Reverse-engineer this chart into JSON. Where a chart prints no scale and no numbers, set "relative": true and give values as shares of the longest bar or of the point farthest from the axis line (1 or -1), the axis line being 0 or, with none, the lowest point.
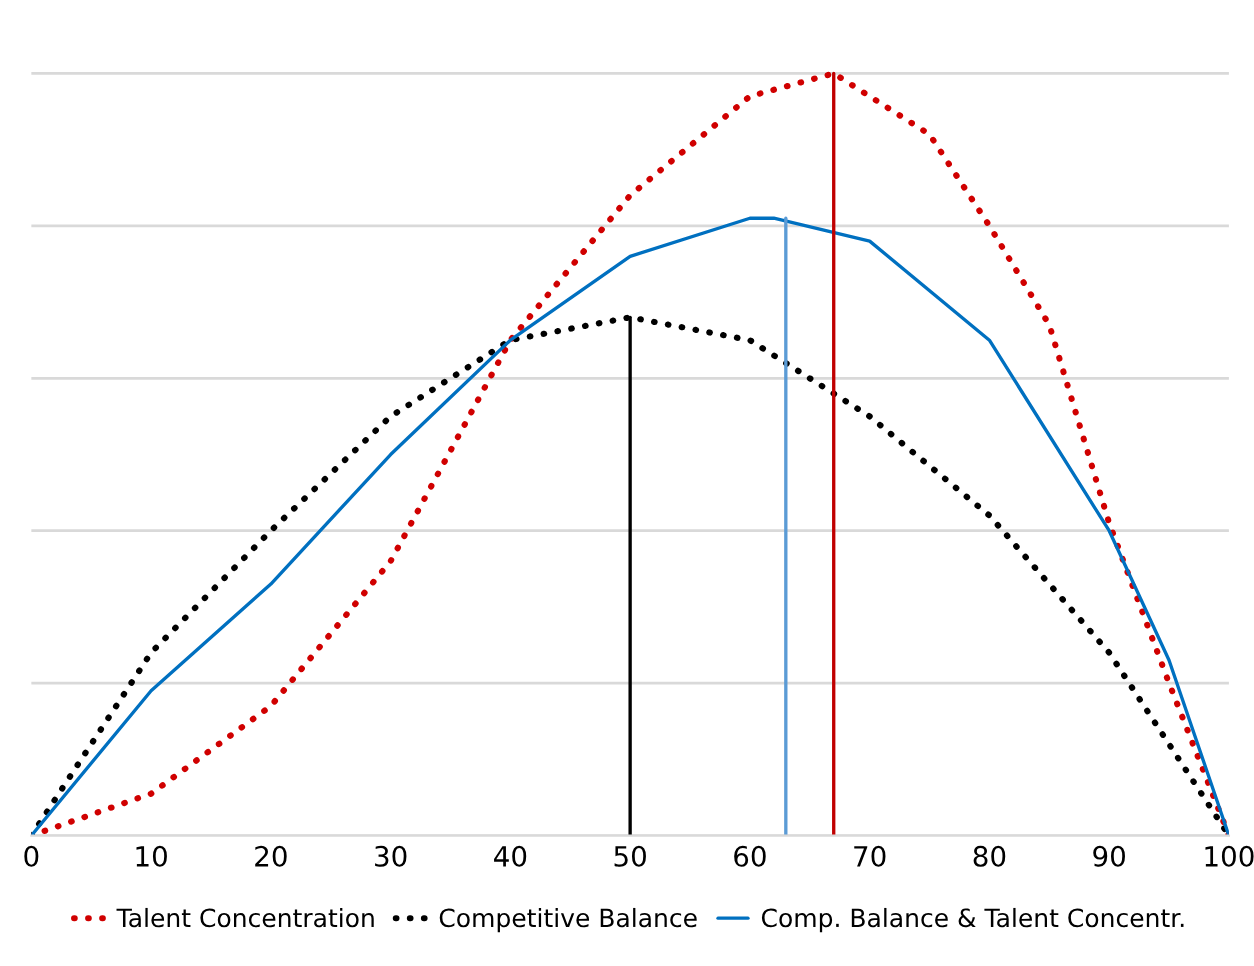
{
  "chart_data": {
    "type": "line",
    "relative": true,
    "xlim": [
      0,
      100
    ],
    "xticks": [
      0,
      10,
      20,
      30,
      40,
      50,
      60,
      70,
      80,
      90,
      100
    ],
    "grid": "y",
    "legend": "bottom",
    "series": [
      {
        "name": "Talent Concentration",
        "color": "#d00000",
        "line_style": "dotted",
        "x": [
          0,
          10,
          20,
          30,
          40,
          50,
          60,
          67,
          75,
          80,
          85,
          90,
          95,
          100
        ],
        "values": [
          0,
          0.055,
          0.17,
          0.36,
          0.65,
          0.84,
          0.97,
          1,
          0.92,
          0.8,
          0.67,
          0.41,
          0.2,
          0
        ]
      },
      {
        "name": "Competitive Balance",
        "color": "#000000",
        "line_style": "dotted",
        "x": [
          0,
          5,
          10,
          20,
          30,
          40,
          50,
          60,
          70,
          80,
          90,
          95,
          100
        ],
        "values": [
          0,
          0.12,
          0.24,
          0.4,
          0.55,
          0.65,
          0.68,
          0.65,
          0.55,
          0.42,
          0.24,
          0.12,
          0
        ]
      },
      {
        "name": "Comp. Balance & Talent Concentr.",
        "color": "#0070c0",
        "line_style": "solid",
        "x": [
          0,
          10,
          20,
          30,
          40,
          50,
          60,
          62,
          70,
          80,
          90,
          95,
          100
        ],
        "values": [
          0,
          0.19,
          0.33,
          0.5,
          0.65,
          0.76,
          0.81,
          0.81,
          0.78,
          0.65,
          0.4,
          0.23,
          0
        ]
      },
      {
        "color": "#000000",
        "line_style": "solid",
        "x": [
          50,
          50
        ],
        "values": [
          0,
          0.68
        ]
      },
      {
        "color": "#5b9bd5",
        "line_style": "solid",
        "x": [
          63,
          63
        ],
        "values": [
          0,
          0.81
        ]
      },
      {
        "color": "#c00000",
        "line_style": "solid",
        "x": [
          67,
          67
        ],
        "values": [
          0,
          1
        ]
      }
    ]
  }
}
